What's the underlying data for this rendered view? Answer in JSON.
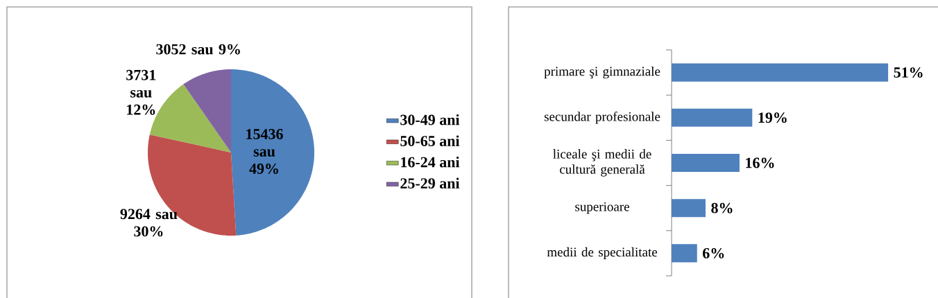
{
  "chart_data": [
    {
      "type": "pie",
      "categories": [
        "30-49 ani",
        "50-65 ani",
        "16-24 ani",
        "25-29 ani"
      ],
      "values": [
        15436,
        9264,
        3731,
        3052
      ],
      "colors": [
        "#4f81bd",
        "#c0504d",
        "#9bbb59",
        "#8064a2"
      ],
      "value_labels": [
        "15436 sau 49%",
        "9264 sau 30%",
        "3731 sau 12%",
        "3052 sau 9%"
      ],
      "legend": "right"
    },
    {
      "type": "bar",
      "orientation": "horizontal",
      "categories": [
        "primare şi gimnaziale",
        "secundar profesionale",
        "liceale şi medii de cultură generală",
        "superioare",
        "medii de specialitate"
      ],
      "values": [
        51,
        19,
        16,
        8,
        6
      ],
      "value_labels": [
        "51%",
        "19%",
        "16%",
        "8%",
        "6%"
      ],
      "color": "#4f81bd"
    }
  ]
}
